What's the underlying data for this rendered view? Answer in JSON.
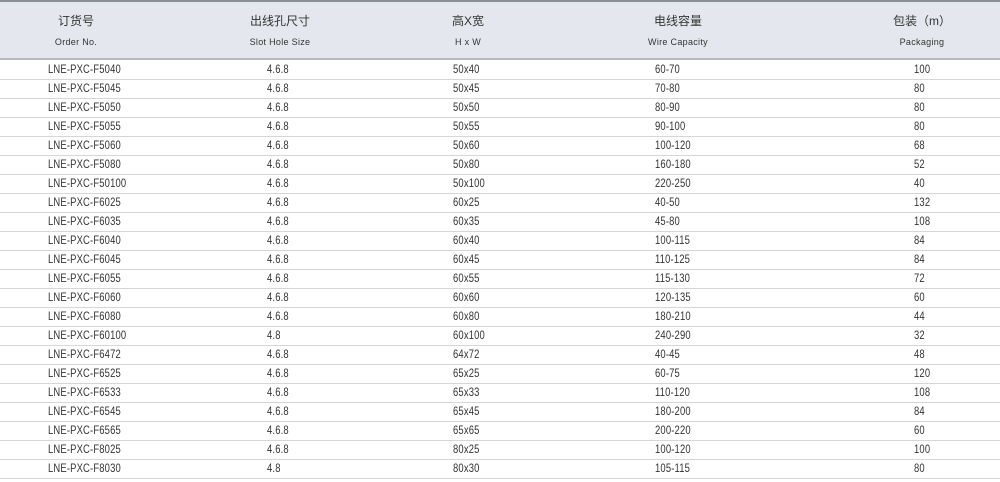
{
  "columns": [
    {
      "zh": "订货号",
      "en": "Order No."
    },
    {
      "zh": "出线孔尺寸",
      "en": "Slot Hole Size"
    },
    {
      "zh": "高X宽",
      "en": "H x W"
    },
    {
      "zh": "电线容量",
      "en": "Wire Capacity"
    },
    {
      "zh": "包装（m）",
      "en": "Packaging"
    }
  ],
  "rows": [
    [
      "LNE-PXC-F5040",
      "4.6.8",
      "50x40",
      "60-70",
      "100"
    ],
    [
      "LNE-PXC-F5045",
      "4.6.8",
      "50x45",
      "70-80",
      "80"
    ],
    [
      "LNE-PXC-F5050",
      "4.6.8",
      "50x50",
      "80-90",
      "80"
    ],
    [
      "LNE-PXC-F5055",
      "4.6.8",
      "50x55",
      "90-100",
      "80"
    ],
    [
      "LNE-PXC-F5060",
      "4.6.8",
      "50x60",
      "100-120",
      "68"
    ],
    [
      "LNE-PXC-F5080",
      "4.6.8",
      "50x80",
      "160-180",
      "52"
    ],
    [
      "LNE-PXC-F50100",
      "4.6.8",
      "50x100",
      "220-250",
      "40"
    ],
    [
      "LNE-PXC-F6025",
      "4.6.8",
      "60x25",
      "40-50",
      "132"
    ],
    [
      "LNE-PXC-F6035",
      "4.6.8",
      "60x35",
      "45-80",
      "108"
    ],
    [
      "LNE-PXC-F6040",
      "4.6.8",
      "60x40",
      "100-115",
      "84"
    ],
    [
      "LNE-PXC-F6045",
      "4.6.8",
      "60x45",
      "110-125",
      "84"
    ],
    [
      "LNE-PXC-F6055",
      "4.6.8",
      "60x55",
      "115-130",
      "72"
    ],
    [
      "LNE-PXC-F6060",
      "4.6.8",
      "60x60",
      "120-135",
      "60"
    ],
    [
      "LNE-PXC-F6080",
      "4.6.8",
      "60x80",
      "180-210",
      "44"
    ],
    [
      "LNE-PXC-F60100",
      "4.8",
      "60x100",
      "240-290",
      "32"
    ],
    [
      "LNE-PXC-F6472",
      "4.6.8",
      "64x72",
      "40-45",
      "48"
    ],
    [
      "LNE-PXC-F6525",
      "4.6.8",
      "65x25",
      "60-75",
      "120"
    ],
    [
      "LNE-PXC-F6533",
      "4.6.8",
      "65x33",
      "110-120",
      "108"
    ],
    [
      "LNE-PXC-F6545",
      "4.6.8",
      "65x45",
      "180-200",
      "84"
    ],
    [
      "LNE-PXC-F6565",
      "4.6.8",
      "65x65",
      "200-220",
      "60"
    ],
    [
      "LNE-PXC-F8025",
      "4.6.8",
      "80x25",
      "100-120",
      "100"
    ],
    [
      "LNE-PXC-F8030",
      "4.8",
      "80x30",
      "105-115",
      "80"
    ]
  ]
}
